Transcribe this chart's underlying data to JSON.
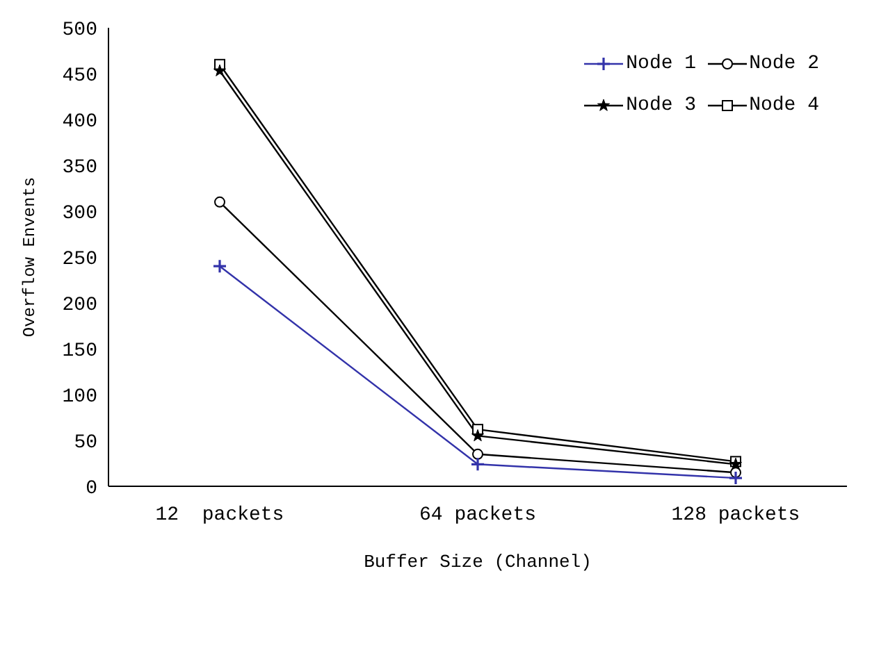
{
  "chart_data": {
    "type": "line",
    "xlabel": "Buffer Size (Channel)",
    "ylabel": "Overflow Envents",
    "categories": [
      "12  packets",
      "64 packets",
      "128 packets"
    ],
    "series": [
      {
        "name": "Node 1",
        "color": "#3333aa",
        "marker": "cross",
        "values": [
          240,
          24,
          9
        ]
      },
      {
        "name": "Node 2",
        "color": "#000000",
        "marker": "circle",
        "values": [
          310,
          35,
          15
        ]
      },
      {
        "name": "Node 3",
        "color": "#000000",
        "marker": "star",
        "values": [
          453,
          55,
          24
        ]
      },
      {
        "name": "Node 4",
        "color": "#000000",
        "marker": "square",
        "values": [
          460,
          62,
          27
        ]
      }
    ],
    "ylim": [
      0,
      500
    ],
    "yticks": [
      0,
      50,
      100,
      150,
      200,
      250,
      300,
      350,
      400,
      450,
      500
    ],
    "grid": false,
    "legend": "top right",
    "line_style": "solid"
  }
}
